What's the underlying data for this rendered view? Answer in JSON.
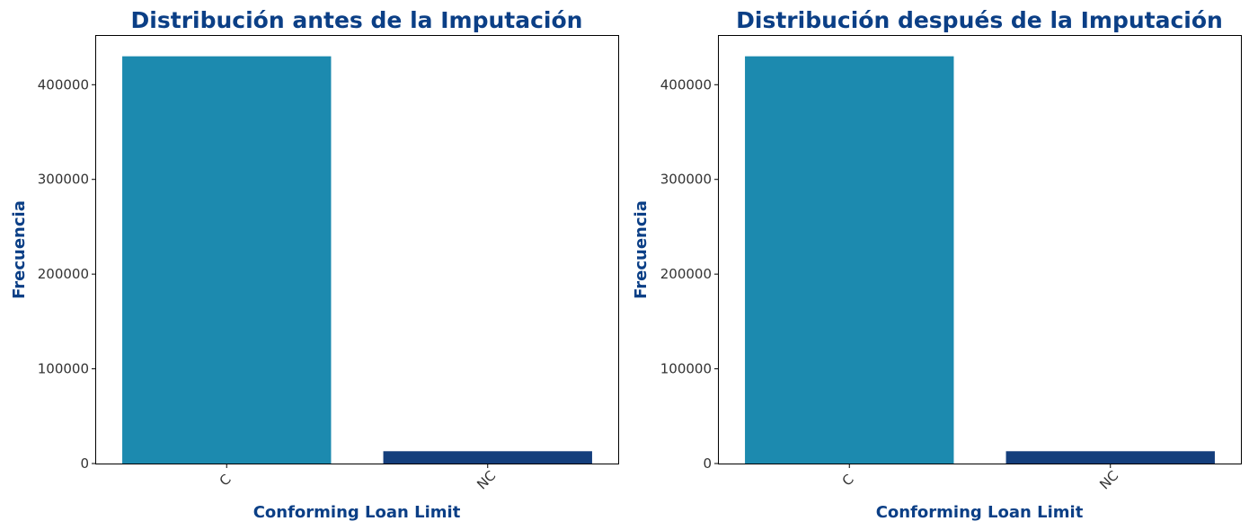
{
  "colors": {
    "title": "#0b3f86",
    "bar_c": "#1c8aaf",
    "bar_nc": "#143e7c",
    "axis": "#000000"
  },
  "chart_data": [
    {
      "type": "bar",
      "title": "Distribución antes de la Imputación",
      "xlabel": "Conforming Loan Limit",
      "ylabel": "Frecuencia",
      "categories": [
        "C",
        "NC"
      ],
      "values": [
        430000,
        13000
      ],
      "ylim": [
        0,
        451500
      ],
      "yticks": [
        0,
        100000,
        200000,
        300000,
        400000
      ],
      "ytick_labels": [
        "0",
        "100000",
        "200000",
        "300000",
        "400000"
      ],
      "grid": false
    },
    {
      "type": "bar",
      "title": "Distribución  después de la Imputación",
      "xlabel": "Conforming Loan Limit",
      "ylabel": "Frecuencia",
      "categories": [
        "C",
        "NC"
      ],
      "values": [
        430000,
        13000
      ],
      "ylim": [
        0,
        451500
      ],
      "yticks": [
        0,
        100000,
        200000,
        300000,
        400000
      ],
      "ytick_labels": [
        "0",
        "100000",
        "200000",
        "300000",
        "400000"
      ],
      "grid": false
    }
  ]
}
